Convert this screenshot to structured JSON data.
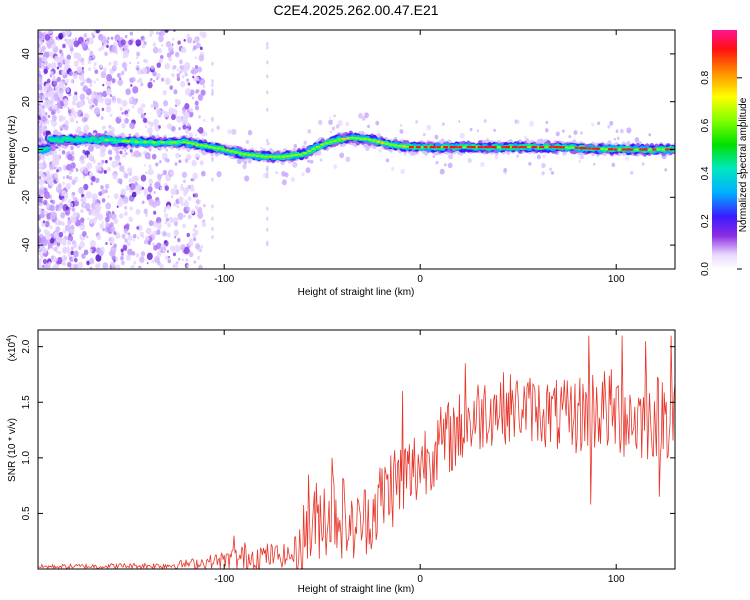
{
  "page_title": "C2E4.2025.262.00.47.E21",
  "colors": {
    "snr_line": "#e8352a",
    "axis": "#000000",
    "background": "#ffffff"
  },
  "chart_data": [
    {
      "type": "heatmap",
      "xlabel": "Height of straight line (km)",
      "ylabel": "Frequency (Hz)",
      "xlim": [
        -195,
        130
      ],
      "ylim": [
        -50,
        50
      ],
      "x_ticks": [
        -100,
        0,
        100
      ],
      "y_ticks": [
        -40,
        -20,
        0,
        20,
        40
      ],
      "x_tick_labels": [
        "-100",
        "0",
        "100"
      ],
      "y_tick_labels": [
        "-40",
        "-20",
        "0",
        "20",
        "40"
      ],
      "colorbar": {
        "label": "Normalized spectral amplitude",
        "range": [
          0,
          1
        ],
        "ticks": [
          0.0,
          0.2,
          0.4,
          0.6,
          0.8
        ],
        "tick_labels": [
          "0.0",
          "0.2",
          "0.4",
          "0.6",
          "0.8"
        ]
      },
      "ridge": {
        "description_points": [
          {
            "x": -190,
            "y": 4
          },
          {
            "x": -160,
            "y": 4
          },
          {
            "x": -140,
            "y": 3
          },
          {
            "x": -120,
            "y": 3
          },
          {
            "x": -100,
            "y": 0
          },
          {
            "x": -90,
            "y": -2
          },
          {
            "x": -80,
            "y": -3
          },
          {
            "x": -70,
            "y": -3
          },
          {
            "x": -60,
            "y": -2
          },
          {
            "x": -55,
            "y": 0
          },
          {
            "x": -50,
            "y": 2
          },
          {
            "x": -42,
            "y": 4
          },
          {
            "x": -35,
            "y": 5
          },
          {
            "x": -25,
            "y": 4
          },
          {
            "x": -15,
            "y": 2
          },
          {
            "x": -5,
            "y": 1
          },
          {
            "x": 10,
            "y": 1
          },
          {
            "x": 40,
            "y": 1
          },
          {
            "x": 70,
            "y": 1
          },
          {
            "x": 100,
            "y": 0
          },
          {
            "x": 129,
            "y": 0
          }
        ]
      }
    },
    {
      "type": "line",
      "xlabel": "Height of straight line (km)",
      "ylabel": "SNR (10 * v/v)",
      "y_scale_label": "(x10",
      "y_scale_exp": "4",
      "y_scale_close": ")",
      "xlim": [
        -195,
        130
      ],
      "ylim": [
        0,
        2.15
      ],
      "x_ticks": [
        -100,
        0,
        100
      ],
      "y_ticks": [
        0.5,
        1.0,
        1.5,
        2.0
      ],
      "x_tick_labels": [
        "-100",
        "0",
        "100"
      ],
      "y_tick_labels": [
        "0.5",
        "1.0",
        "1.5",
        "2.0"
      ],
      "series": [
        {
          "name": "SNR",
          "envelope": [
            {
              "x": -195,
              "base": 0.02,
              "amp": 0.02
            },
            {
              "x": -130,
              "base": 0.03,
              "amp": 0.03
            },
            {
              "x": -115,
              "base": 0.05,
              "amp": 0.05
            },
            {
              "x": -100,
              "base": 0.08,
              "amp": 0.08
            },
            {
              "x": -90,
              "base": 0.1,
              "amp": 0.15
            },
            {
              "x": -80,
              "base": 0.12,
              "amp": 0.12
            },
            {
              "x": -65,
              "base": 0.12,
              "amp": 0.1
            },
            {
              "x": -60,
              "base": 0.25,
              "amp": 0.35
            },
            {
              "x": -50,
              "base": 0.5,
              "amp": 0.4
            },
            {
              "x": -42,
              "base": 0.55,
              "amp": 0.45
            },
            {
              "x": -35,
              "base": 0.35,
              "amp": 0.3
            },
            {
              "x": -25,
              "base": 0.5,
              "amp": 0.35
            },
            {
              "x": -15,
              "base": 0.75,
              "amp": 0.4
            },
            {
              "x": -5,
              "base": 0.85,
              "amp": 0.4
            },
            {
              "x": 5,
              "base": 1.05,
              "amp": 0.35
            },
            {
              "x": 20,
              "base": 1.25,
              "amp": 0.35
            },
            {
              "x": 35,
              "base": 1.45,
              "amp": 0.35
            },
            {
              "x": 55,
              "base": 1.45,
              "amp": 0.3
            },
            {
              "x": 75,
              "base": 1.35,
              "amp": 0.35
            },
            {
              "x": 90,
              "base": 1.45,
              "amp": 0.4
            },
            {
              "x": 110,
              "base": 1.35,
              "amp": 0.4
            },
            {
              "x": 130,
              "base": 1.4,
              "amp": 0.4
            }
          ],
          "peaks": [
            {
              "x": -95,
              "y": 0.3
            },
            {
              "x": -57,
              "y": 0.85
            },
            {
              "x": -45,
              "y": 1.0
            },
            {
              "x": -9,
              "y": 1.6
            },
            {
              "x": 23,
              "y": 1.85
            },
            {
              "x": 86,
              "y": 2.1
            },
            {
              "x": 103,
              "y": 2.1
            },
            {
              "x": 115,
              "y": 2.05
            },
            {
              "x": 128,
              "y": 2.1
            }
          ],
          "dips": [
            {
              "x": 87,
              "y": 0.58
            },
            {
              "x": 122,
              "y": 0.65
            }
          ]
        }
      ]
    }
  ]
}
